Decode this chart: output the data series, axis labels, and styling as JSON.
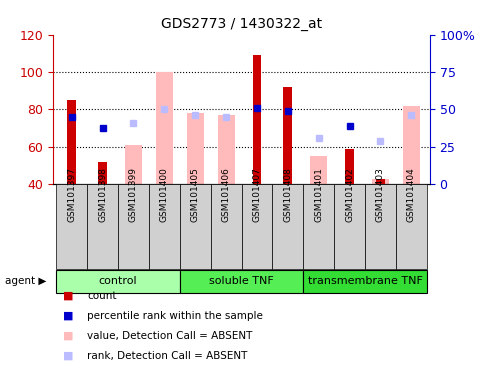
{
  "title": "GDS2773 / 1430322_at",
  "samples": [
    "GSM101397",
    "GSM101398",
    "GSM101399",
    "GSM101400",
    "GSM101405",
    "GSM101406",
    "GSM101407",
    "GSM101408",
    "GSM101401",
    "GSM101402",
    "GSM101403",
    "GSM101404"
  ],
  "groups": [
    {
      "name": "control",
      "start": 0,
      "end": 4,
      "color": "#aaffaa"
    },
    {
      "name": "soluble TNF",
      "start": 4,
      "end": 8,
      "color": "#55ee55"
    },
    {
      "name": "transmembrane TNF",
      "start": 8,
      "end": 12,
      "color": "#33dd33"
    }
  ],
  "count_values": [
    85,
    52,
    null,
    null,
    null,
    null,
    109,
    92,
    null,
    59,
    43,
    null
  ],
  "rank_values": [
    76,
    70,
    null,
    null,
    null,
    null,
    81,
    79,
    null,
    71,
    null,
    null
  ],
  "absent_value_bars": [
    null,
    null,
    61,
    100,
    78,
    77,
    null,
    null,
    55,
    null,
    43,
    82
  ],
  "absent_rank_dots": [
    null,
    null,
    73,
    80,
    77,
    76,
    null,
    null,
    65,
    null,
    63,
    77
  ],
  "ylim_left": [
    40,
    120
  ],
  "ylim_right": [
    0,
    100
  ],
  "yticks_left": [
    40,
    60,
    80,
    100,
    120
  ],
  "yticks_right": [
    0,
    25,
    50,
    75,
    100
  ],
  "ytick_labels_right": [
    "0",
    "25",
    "50",
    "75",
    "100%"
  ],
  "count_color": "#cc0000",
  "rank_color": "#0000cc",
  "absent_value_color": "#ffbbbb",
  "absent_rank_color": "#bbbbff",
  "sample_bg_color": "#d0d0d0",
  "plot_bg": "#ffffff"
}
